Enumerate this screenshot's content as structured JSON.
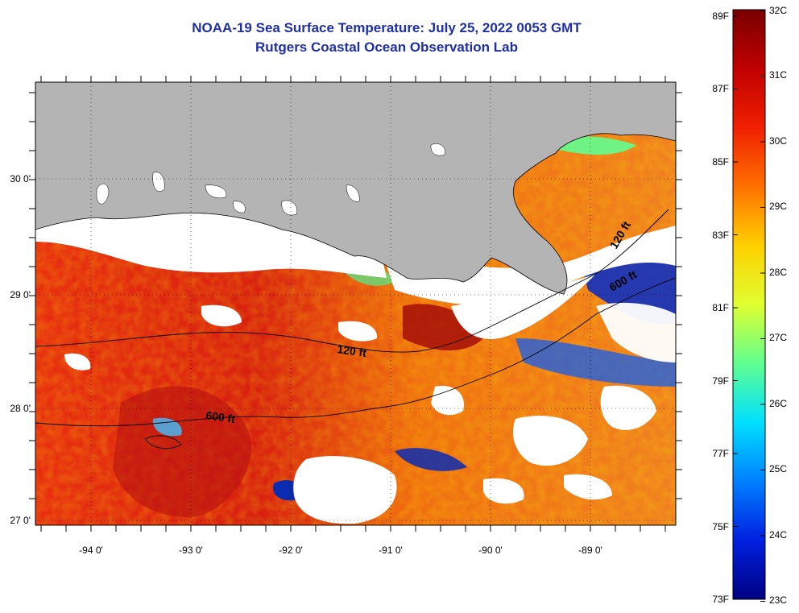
{
  "header": {
    "title_line1": "NOAA-19 Sea Surface Temperature:  July 25, 2022 0053 GMT",
    "title_line2": "Rutgers Coastal Ocean Observation Lab"
  },
  "map": {
    "lon_labels": [
      "-94 0'",
      "-93 0'",
      "-92 0'",
      "-91 0'",
      "-90 0'",
      "-89 0'"
    ],
    "lat_labels": [
      "30 0'",
      "29 0'",
      "28 0'",
      "27 0'"
    ],
    "contour_labels": [
      "120 ft",
      "120 ft",
      "600 ft",
      "600 ft"
    ],
    "colors": {
      "land": "#b4b4b4",
      "cloud": "#ffffff",
      "warm": "#e02a10",
      "cool": "#1030c0"
    }
  },
  "colorbar": {
    "f_labels": [
      "89F",
      "87F",
      "85F",
      "83F",
      "81F",
      "79F",
      "77F",
      "75F",
      "73F"
    ],
    "c_labels": [
      "32C",
      "31C",
      "30C",
      "29C",
      "28C",
      "27C",
      "26C",
      "25C",
      "24C",
      "23C"
    ]
  }
}
